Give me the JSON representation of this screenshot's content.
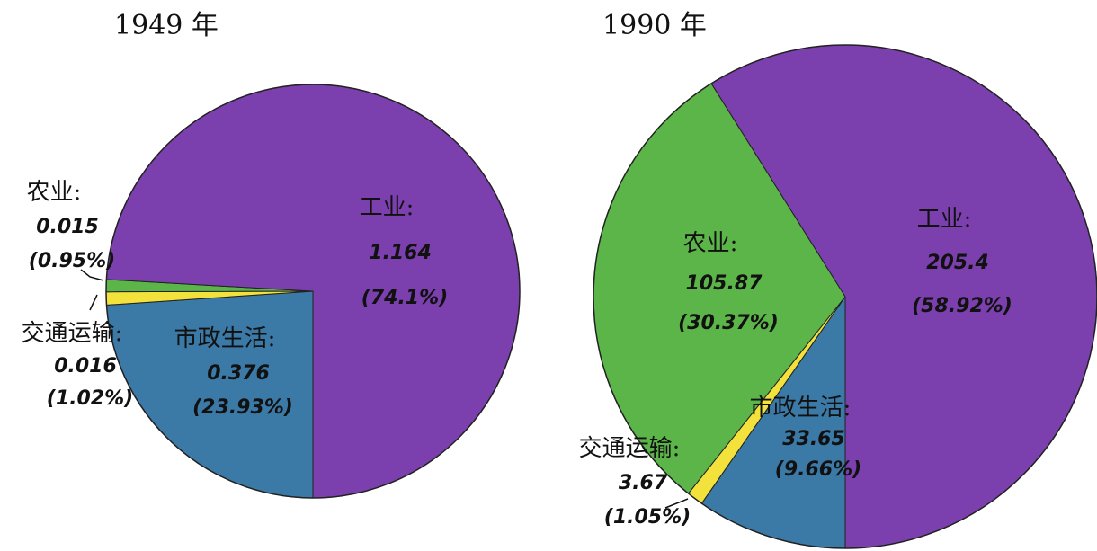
{
  "chart_data": [
    {
      "type": "pie",
      "title": "1949 年",
      "categories": [
        "市政生活:",
        "交通运输:",
        "农业:",
        "工业:"
      ],
      "values": [
        0.376,
        0.016,
        0.015,
        1.164
      ],
      "percent_labels": [
        "(23.93%)",
        "(1.02%)",
        "(0.95%)",
        "(74.1%)"
      ],
      "colors": [
        "#3b79a6",
        "#f3e23c",
        "#5cb548",
        "#7b3fae"
      ]
    },
    {
      "type": "pie",
      "title": "1990 年",
      "categories": [
        "市政生活:",
        "交通运输:",
        "农业:",
        "工业:"
      ],
      "values": [
        33.65,
        3.67,
        105.87,
        205.4
      ],
      "percent_labels": [
        "(9.66%)",
        "(1.05%)",
        "(30.37%)",
        "(58.92%)"
      ],
      "colors": [
        "#3b79a6",
        "#f3e23c",
        "#5cb548",
        "#7b3fae"
      ]
    }
  ]
}
